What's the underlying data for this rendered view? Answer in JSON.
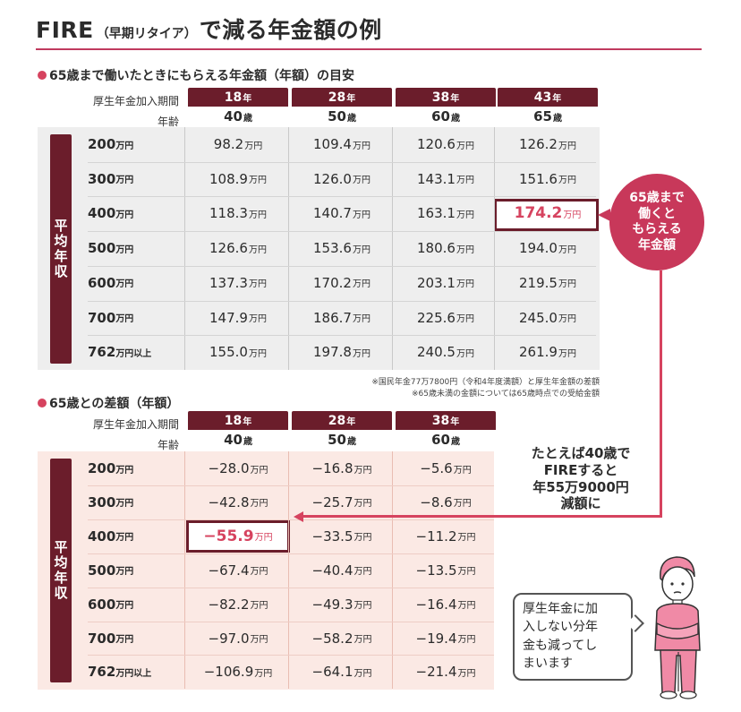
{
  "title": {
    "fire": "FIRE",
    "paren": "（早期リタイア）",
    "rest": "で減る年金額の例"
  },
  "section1": {
    "heading": "65歳まで働いたときにもらえる年金額（年額）の目安",
    "period_label": "厚生年金加入期間",
    "age_label": "年齢",
    "columns": [
      {
        "years": "18",
        "years_unit": "年",
        "age": "40",
        "age_unit": "歳"
      },
      {
        "years": "28",
        "years_unit": "年",
        "age": "50",
        "age_unit": "歳"
      },
      {
        "years": "38",
        "years_unit": "年",
        "age": "60",
        "age_unit": "歳"
      },
      {
        "years": "43",
        "years_unit": "年",
        "age": "65",
        "age_unit": "歳"
      }
    ],
    "side_label": [
      "平",
      "均",
      "年",
      "収"
    ],
    "rows": [
      {
        "income": "200",
        "unit": "万円",
        "values": [
          "98.2",
          "109.4",
          "120.6",
          "126.2"
        ]
      },
      {
        "income": "300",
        "unit": "万円",
        "values": [
          "108.9",
          "126.0",
          "143.1",
          "151.6"
        ]
      },
      {
        "income": "400",
        "unit": "万円",
        "values": [
          "118.3",
          "140.7",
          "163.1",
          "174.2"
        ]
      },
      {
        "income": "500",
        "unit": "万円",
        "values": [
          "126.6",
          "153.6",
          "180.6",
          "194.0"
        ]
      },
      {
        "income": "600",
        "unit": "万円",
        "values": [
          "137.3",
          "170.2",
          "203.1",
          "219.5"
        ]
      },
      {
        "income": "700",
        "unit": "万円",
        "values": [
          "147.9",
          "186.7",
          "225.6",
          "245.0"
        ]
      },
      {
        "income": "762",
        "unit": "万円以上",
        "values": [
          "155.0",
          "197.8",
          "240.5",
          "261.9"
        ]
      }
    ],
    "value_unit": "万円",
    "notes": [
      "※国民年金77万7800円（令和4年度満額）と厚生年金額の差額",
      "※65歳未満の金額については65歳時点での受給金額"
    ]
  },
  "section2": {
    "heading": "65歳との差額（年額）",
    "period_label": "厚生年金加入期間",
    "age_label": "年齢",
    "columns": [
      {
        "years": "18",
        "years_unit": "年",
        "age": "40",
        "age_unit": "歳"
      },
      {
        "years": "28",
        "years_unit": "年",
        "age": "50",
        "age_unit": "歳"
      },
      {
        "years": "38",
        "years_unit": "年",
        "age": "60",
        "age_unit": "歳"
      }
    ],
    "side_label": [
      "平",
      "均",
      "年",
      "収"
    ],
    "rows": [
      {
        "income": "200",
        "unit": "万円",
        "values": [
          "−28.0",
          "−16.8",
          "−5.6"
        ]
      },
      {
        "income": "300",
        "unit": "万円",
        "values": [
          "−42.8",
          "−25.7",
          "−8.6"
        ]
      },
      {
        "income": "400",
        "unit": "万円",
        "values": [
          "−55.9",
          "−33.5",
          "−11.2"
        ]
      },
      {
        "income": "500",
        "unit": "万円",
        "values": [
          "−67.4",
          "−40.4",
          "−13.5"
        ]
      },
      {
        "income": "600",
        "unit": "万円",
        "values": [
          "−82.2",
          "−49.3",
          "−16.4"
        ]
      },
      {
        "income": "700",
        "unit": "万円",
        "values": [
          "−97.0",
          "−58.2",
          "−19.4"
        ]
      },
      {
        "income": "762",
        "unit": "万円以上",
        "values": [
          "−106.9",
          "−64.1",
          "−21.4"
        ]
      }
    ],
    "value_unit": "万円"
  },
  "bubble": [
    "65歳まで",
    "働くと",
    "もらえる",
    "年金額"
  ],
  "callout": [
    "たとえば40歳で",
    "FIREすると",
    "年55万9000円",
    "減額に"
  ],
  "speech": [
    "厚生年金に加",
    "入しない分年",
    "金も減ってし",
    "まいます"
  ],
  "colors": {
    "accent": "#d6435f",
    "dark": "#6b1d2b",
    "panel1": "#eeeeee",
    "panel2": "#fbe9e4"
  }
}
